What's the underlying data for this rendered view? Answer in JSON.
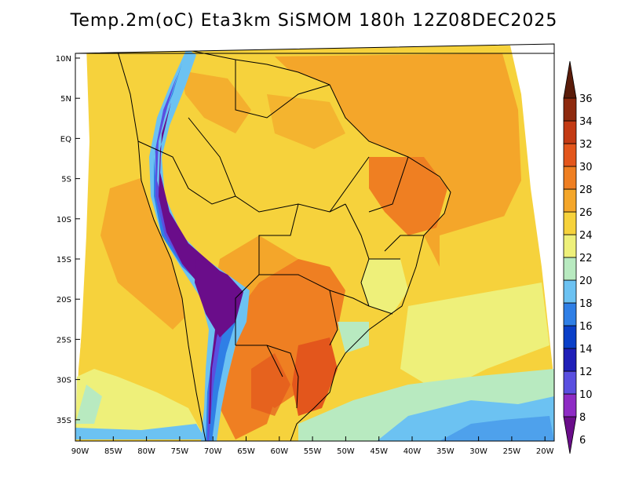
{
  "title": "Temp.2m(oC) Eta3km SiSMOM 180h 12Z08DEC2025",
  "map": {
    "variable": "2 m air temperature",
    "units": "oC",
    "lat_ticks": [
      "10N",
      "5N",
      "EQ",
      "5S",
      "10S",
      "15S",
      "20S",
      "25S",
      "30S",
      "35S"
    ],
    "lon_ticks": [
      "90W",
      "85W",
      "80W",
      "75W",
      "70W",
      "65W",
      "60W",
      "55W",
      "50W",
      "45W",
      "40W",
      "35W",
      "30W",
      "25W",
      "20W"
    ]
  },
  "colorbar": {
    "labels": [
      "6",
      "8",
      "10",
      "12",
      "14",
      "16",
      "18",
      "20",
      "22",
      "24",
      "26",
      "28",
      "30",
      "32",
      "34",
      "36"
    ],
    "colors": [
      "#6a0d8a",
      "#8e2bc4",
      "#5a4fe0",
      "#1f1fb8",
      "#0a3fc8",
      "#2f7fe6",
      "#6cc2f2",
      "#b8eac0",
      "#eef07a",
      "#f6d23c",
      "#f4a62a",
      "#ef7f22",
      "#e3561c",
      "#c33a14",
      "#8e2a0e",
      "#5a1c0a"
    ]
  },
  "colors": {
    "ocean_warm": "#f4a62a",
    "ocean_mild": "#f6d23c",
    "ocean_cool": "#eef07a",
    "land_hot": "#ef7f22",
    "andes_cold": "#6a0d8a",
    "frame": "#000000"
  }
}
